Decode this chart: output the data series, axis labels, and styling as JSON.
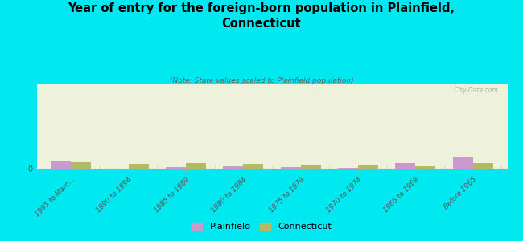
{
  "title": "Year of entry for the foreign-born population in Plainfield,\nConnecticut",
  "subtitle": "(Note: State values scaled to Plainfield population)",
  "categories": [
    "1995 to Marc...",
    "1990 to 1994",
    "1985 to 1989",
    "1980 to 1984",
    "1975 to 1979",
    "1970 to 1974",
    "1965 to 1969",
    "Before 1965"
  ],
  "plainfield_values": [
    38,
    0,
    8,
    10,
    6,
    5,
    28,
    55
  ],
  "connecticut_values": [
    32,
    22,
    28,
    22,
    18,
    20,
    12,
    25
  ],
  "plainfield_color": "#cc99cc",
  "connecticut_color": "#b5b865",
  "background_color": "#00e8f0",
  "plot_bg_color": "#eef2dc",
  "bar_width": 0.35,
  "ylim": [
    0,
    400
  ],
  "watermark": " City-Data.com"
}
